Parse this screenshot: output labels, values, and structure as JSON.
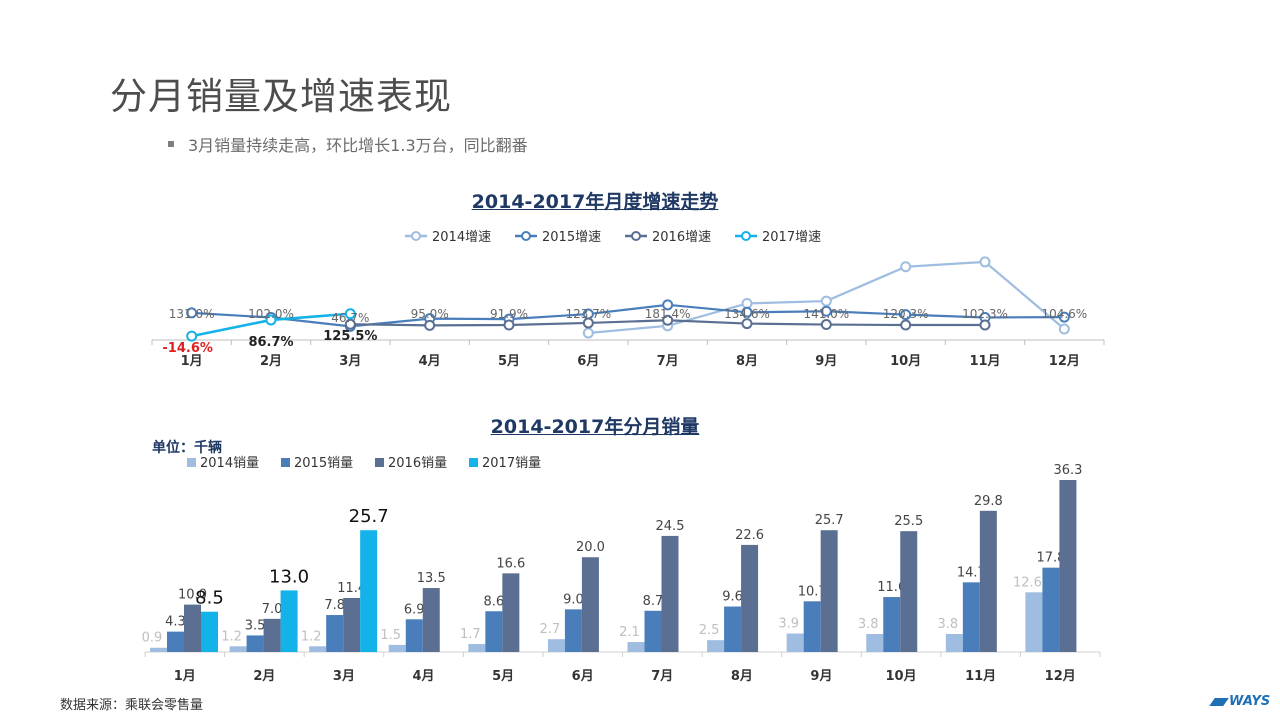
{
  "slide": {
    "title": "分月销量及增速表现",
    "bullet": "3月销量持续走高，环比增长1.3万台，同比翻番",
    "source": "数据来源：乘联会零售量",
    "logo": "WAYS"
  },
  "colors": {
    "s2014": "#9fbde0",
    "s2015": "#4a7ebb",
    "s2016": "#5b6f92",
    "s2017": "#13b2e8",
    "negative": "#e02020",
    "title": "#1f3864"
  },
  "chart_data": [
    {
      "type": "line",
      "title": "2014-2017年月度增速走势",
      "categories": [
        "1月",
        "2月",
        "3月",
        "4月",
        "5月",
        "6月",
        "7月",
        "8月",
        "9月",
        "10月",
        "11月",
        "12月"
      ],
      "ylim": [
        -20,
        700
      ],
      "series": [
        {
          "name": "2014增速",
          "values": [
            null,
            null,
            null,
            null,
            null,
            5,
            50,
            190,
            205,
            420,
            450,
            30
          ]
        },
        {
          "name": "2015增速",
          "values": [
            131.0,
            102.0,
            46.7,
            95.0,
            91.9,
            123.7,
            181.4,
            134.6,
            141.0,
            120.3,
            102.3,
            104.6
          ]
        },
        {
          "name": "2016增速",
          "values": [
            null,
            null,
            60,
            53,
            55,
            68,
            85,
            64,
            58,
            55,
            55,
            null
          ]
        },
        {
          "name": "2017增速",
          "values": [
            -14.6,
            86.7,
            125.5,
            null,
            null,
            null,
            null,
            null,
            null,
            null,
            null,
            null
          ]
        }
      ],
      "labels": [
        {
          "text": "131.0%",
          "cat": 0
        },
        {
          "text": "102.0%",
          "cat": 1
        },
        {
          "text": "46.7%",
          "cat": 2
        },
        {
          "text": "95.0%",
          "cat": 3
        },
        {
          "text": "91.9%",
          "cat": 4
        },
        {
          "text": "123.7%",
          "cat": 5
        },
        {
          "text": "181.4%",
          "cat": 6
        },
        {
          "text": "134.6%",
          "cat": 7
        },
        {
          "text": "141.0%",
          "cat": 8
        },
        {
          "text": "120.3%",
          "cat": 9
        },
        {
          "text": "102.3%",
          "cat": 10
        },
        {
          "text": "104.6%",
          "cat": 11
        }
      ],
      "labels2017": [
        {
          "text": "-14.6%",
          "cat": 0,
          "negative": true
        },
        {
          "text": "86.7%",
          "cat": 1
        },
        {
          "text": "125.5%",
          "cat": 2
        }
      ]
    },
    {
      "type": "bar",
      "title": "2014-2017年分月销量",
      "unit": "单位：千辆",
      "categories": [
        "1月",
        "2月",
        "3月",
        "4月",
        "5月",
        "6月",
        "7月",
        "8月",
        "9月",
        "10月",
        "11月",
        "12月"
      ],
      "ylim": [
        0,
        40
      ],
      "series": [
        {
          "name": "2014销量",
          "values": [
            0.9,
            1.2,
            1.2,
            1.5,
            1.7,
            2.7,
            2.1,
            2.5,
            3.9,
            3.8,
            3.8,
            12.6
          ]
        },
        {
          "name": "2015销量",
          "values": [
            4.3,
            3.5,
            7.8,
            6.9,
            8.6,
            9.0,
            8.7,
            9.6,
            10.7,
            11.6,
            14.7,
            17.8
          ]
        },
        {
          "name": "2016销量",
          "values": [
            10.0,
            7.0,
            11.4,
            13.5,
            16.6,
            20.0,
            24.5,
            22.6,
            25.7,
            25.5,
            29.8,
            36.3
          ]
        },
        {
          "name": "2017销量",
          "values": [
            8.5,
            13.0,
            25.7,
            null,
            null,
            null,
            null,
            null,
            null,
            null,
            null,
            null
          ]
        }
      ]
    }
  ]
}
